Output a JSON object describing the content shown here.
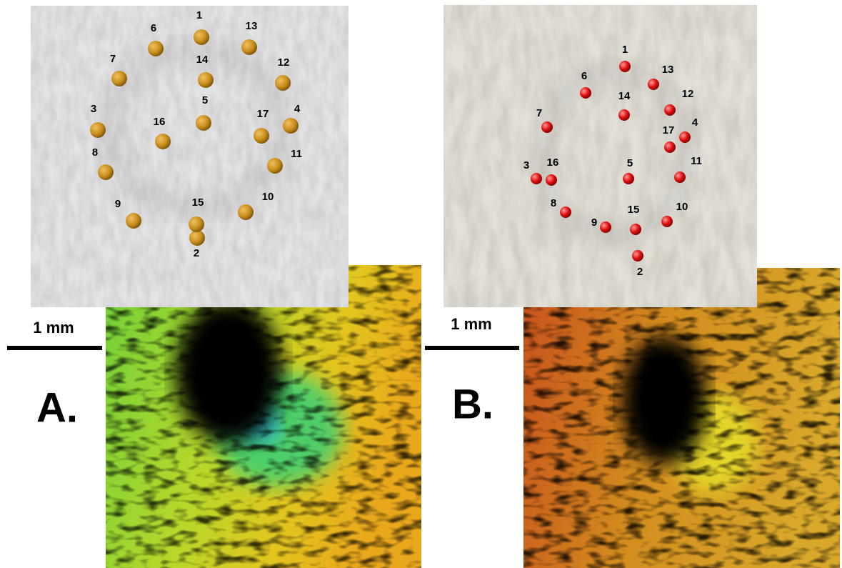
{
  "panels": [
    {
      "label": "A.",
      "scale_bar": "1 mm",
      "landmarks": [
        "1",
        "2",
        "3",
        "4",
        "5",
        "6",
        "7",
        "8",
        "9",
        "10",
        "11",
        "12",
        "13",
        "14",
        "15",
        "16",
        "17"
      ]
    },
    {
      "label": "B.",
      "scale_bar": "1 mm",
      "landmarks": [
        "1",
        "2",
        "3",
        "4",
        "5",
        "6",
        "7",
        "8",
        "9",
        "10",
        "11",
        "12",
        "13",
        "14",
        "15",
        "16",
        "17"
      ]
    }
  ]
}
